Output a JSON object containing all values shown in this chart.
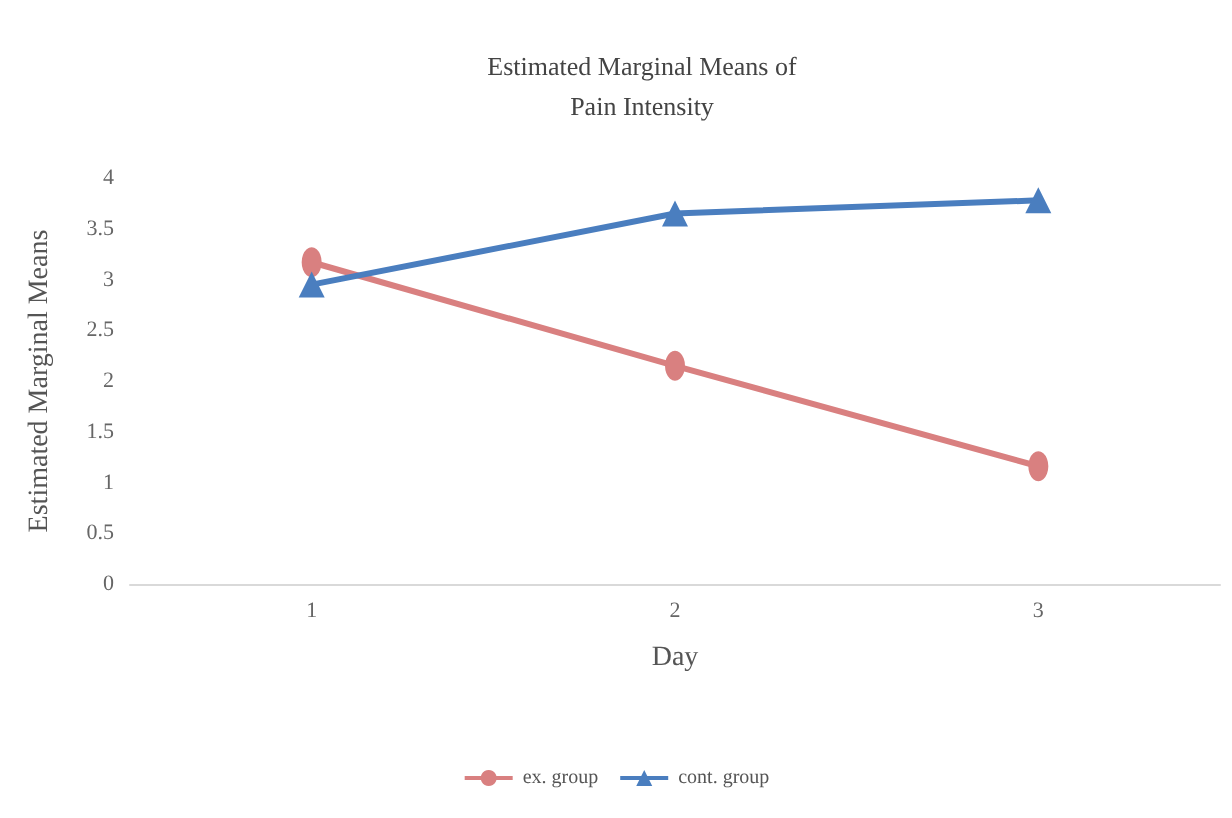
{
  "chart_data": {
    "type": "line",
    "title": "Estimated Marginal Means of\nPain Intensity",
    "xlabel": "Day",
    "ylabel": "Estimated Marginal Means",
    "categories": [
      "1",
      "2",
      "3"
    ],
    "series": [
      {
        "name": "ex. group",
        "color": "#d98080",
        "marker": "circle",
        "values": [
          3.17,
          2.15,
          1.16
        ]
      },
      {
        "name": "cont. group",
        "color": "#4a7ebf",
        "marker": "triangle",
        "values": [
          2.95,
          3.65,
          3.78
        ]
      }
    ],
    "ylim": [
      0,
      4
    ],
    "yticks": [
      0,
      0.5,
      1,
      1.5,
      2,
      2.5,
      3,
      3.5,
      4
    ],
    "grid": false,
    "legend": "bottom"
  }
}
